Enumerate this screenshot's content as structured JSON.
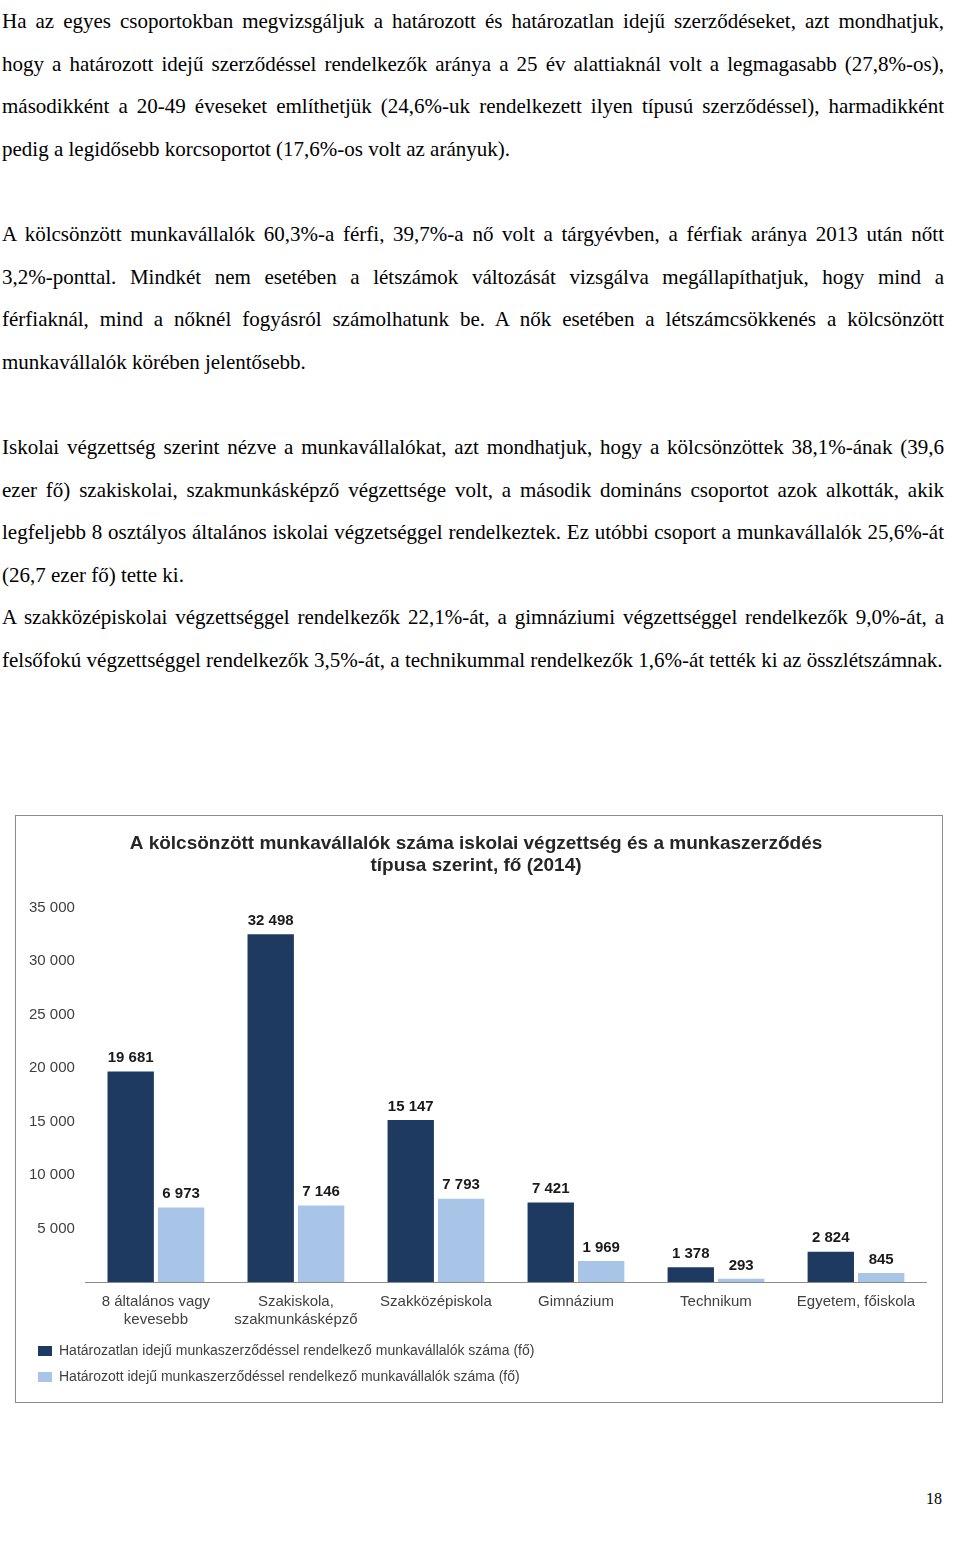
{
  "paragraphs": [
    "Ha az egyes csoportokban megvizsgáljuk a határozott és határozatlan idejű szerződéseket, azt mondhatjuk, hogy a határozott idejű szerződéssel rendelkezők aránya a 25 év alattiaknál volt a legmagasabb (27,8%-os), másodikként a 20-49 éveseket említhetjük (24,6%-uk rendelkezett ilyen típusú szerződéssel), harmadikként pedig a legidősebb korcsoportot (17,6%-os volt az arányuk).",
    "A kölcsönzött munkavállalók 60,3%-a férfi, 39,7%-a nő volt a tárgyévben, a férfiak aránya 2013 után nőtt 3,2%-ponttal. Mindkét nem esetében a létszámok változását vizsgálva megállapíthatjuk, hogy mind a férfiaknál, mind a nőknél fogyásról számolhatunk be. A nők esetében a létszámcsökkenés a kölcsönzött munkavállalók körében jelentősebb.",
    "Iskolai végzettség szerint nézve a munkavállalókat, azt mondhatjuk, hogy a kölcsönzöttek 38,1%-ának (39,6 ezer fő) szakiskolai, szakmunkásképző végzettsége volt, a második domináns csoportot azok alkották, akik legfeljebb 8 osztályos általános iskolai végzetséggel rendelkeztek. Ez utóbbi csoport a munkavállalók 25,6%-át (26,7 ezer fő) tette ki.",
    "A szakközépiskolai végzettséggel rendelkezők 22,1%-át, a gimnáziumi végzettséggel rendelkezők 9,0%-át, a felsőfokú végzettséggel rendelkezők 3,5%-át, a technikummal rendelkezők 1,6%-át tették ki az összlétszámnak."
  ],
  "chart_data": {
    "type": "bar",
    "title": [
      "A kölcsönzött munkavállalók száma iskolai végzettség és a munkaszerződés",
      "típusa szerint, fő (2014)"
    ],
    "categories": [
      [
        "8 általános vagy",
        "kevesebb"
      ],
      [
        "Szakiskola,",
        "szakmunkásképző"
      ],
      "Szakközépiskola",
      "Gimnázium",
      "Technikum",
      "Egyetem, főiskola"
    ],
    "series": [
      {
        "name": "Határozatlan idejű munkaszerződéssel rendelkező munkavállalók száma (fő)",
        "color": "#1f3a60",
        "values": [
          19681,
          32498,
          15147,
          7421,
          1378,
          2824
        ],
        "value_labels": [
          "19 681",
          "32 498",
          "15 147",
          "7 421",
          "1 378",
          "2 824"
        ]
      },
      {
        "name": "Határozott idejű munkaszerződéssel rendelkező munkavállalók száma (fő)",
        "color": "#a8c4e6",
        "values": [
          6973,
          7146,
          7793,
          1969,
          293,
          845
        ],
        "value_labels": [
          "6 973",
          "7 146",
          "7 793",
          "1 969",
          "293",
          "845"
        ]
      }
    ],
    "ylim": [
      0,
      35000
    ],
    "yticks": [
      {
        "value": 5000,
        "label": "5 000"
      },
      {
        "value": 10000,
        "label": "10 000"
      },
      {
        "value": 15000,
        "label": "15 000"
      },
      {
        "value": 20000,
        "label": "20 000"
      },
      {
        "value": 25000,
        "label": "25 000"
      },
      {
        "value": 30000,
        "label": "30 000"
      },
      {
        "value": 35000,
        "label": "35 000"
      }
    ],
    "grid": false,
    "legend": "bottom",
    "data_labels": true
  },
  "page_number": "18"
}
